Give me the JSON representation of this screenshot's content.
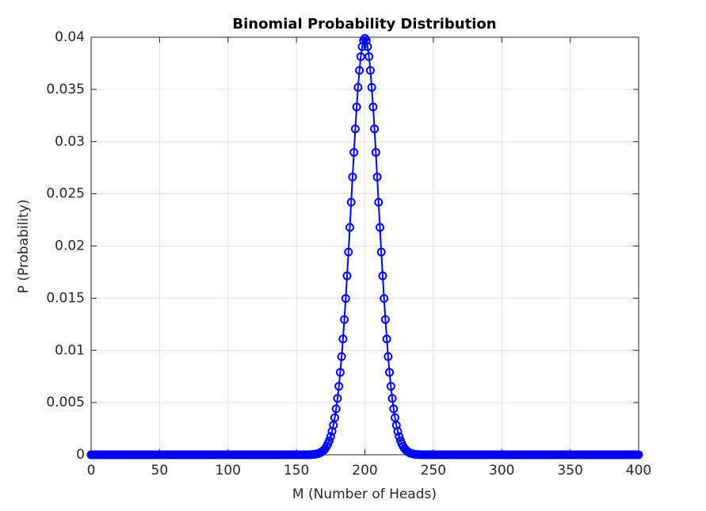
{
  "chart_data": {
    "type": "line",
    "title": "Binomial Probability Distribution",
    "x_label": "M (Number of Heads)",
    "y_label": "P (Probability)",
    "xlim": [
      0,
      400
    ],
    "xticks": [
      0,
      50,
      100,
      150,
      200,
      250,
      300,
      350,
      400
    ],
    "ylim": [
      0,
      0.04
    ],
    "yticks": [
      0,
      0.005,
      0.01,
      0.015,
      0.02,
      0.025,
      0.03,
      0.035,
      0.04
    ],
    "grid": true,
    "marker": "circle",
    "x": [
      0,
      1,
      2,
      3,
      4,
      5,
      6,
      7,
      8,
      9,
      10,
      11,
      12,
      13,
      14,
      15,
      16,
      17,
      18,
      19,
      20,
      21,
      22,
      23,
      24,
      25,
      26,
      27,
      28,
      29,
      30,
      31,
      32,
      33,
      34,
      35,
      36,
      37,
      38,
      39,
      40,
      41,
      42,
      43,
      44,
      45,
      46,
      47,
      48,
      49,
      50,
      51,
      52,
      53,
      54,
      55,
      56,
      57,
      58,
      59,
      60,
      61,
      62,
      63,
      64,
      65,
      66,
      67,
      68,
      69,
      70,
      71,
      72,
      73,
      74,
      75,
      76,
      77,
      78,
      79,
      80,
      81,
      82,
      83,
      84,
      85,
      86,
      87,
      88,
      89,
      90,
      91,
      92,
      93,
      94,
      95,
      96,
      97,
      98,
      99,
      100,
      101,
      102,
      103,
      104,
      105,
      106,
      107,
      108,
      109,
      110,
      111,
      112,
      113,
      114,
      115,
      116,
      117,
      118,
      119,
      120,
      121,
      122,
      123,
      124,
      125,
      126,
      127,
      128,
      129,
      130,
      131,
      132,
      133,
      134,
      135,
      136,
      137,
      138,
      139,
      140,
      141,
      142,
      143,
      144,
      145,
      146,
      147,
      148,
      149,
      150,
      151,
      152,
      153,
      154,
      155,
      156,
      157,
      158,
      159,
      160,
      161,
      162,
      163,
      164,
      165,
      166,
      167,
      168,
      169,
      170,
      171,
      172,
      173,
      174,
      175,
      176,
      177,
      178,
      179,
      180,
      181,
      182,
      183,
      184,
      185,
      186,
      187,
      188,
      189,
      190,
      191,
      192,
      193,
      194,
      195,
      196,
      197,
      198,
      199,
      200,
      201,
      202,
      203,
      204,
      205,
      206,
      207,
      208,
      209,
      210,
      211,
      212,
      213,
      214,
      215,
      216,
      217,
      218,
      219,
      220,
      221,
      222,
      223,
      224,
      225,
      226,
      227,
      228,
      229,
      230,
      231,
      232,
      233,
      234,
      235,
      236,
      237,
      238,
      239,
      240,
      241,
      242,
      243,
      244,
      245,
      246,
      247,
      248,
      249,
      250,
      251,
      252,
      253,
      254,
      255,
      256,
      257,
      258,
      259,
      260,
      261,
      262,
      263,
      264,
      265,
      266,
      267,
      268,
      269,
      270,
      271,
      272,
      273,
      274,
      275,
      276,
      277,
      278,
      279,
      280,
      281,
      282,
      283,
      284,
      285,
      286,
      287,
      288,
      289,
      290,
      291,
      292,
      293,
      294,
      295,
      296,
      297,
      298,
      299,
      300,
      301,
      302,
      303,
      304,
      305,
      306,
      307,
      308,
      309,
      310,
      311,
      312,
      313,
      314,
      315,
      316,
      317,
      318,
      319,
      320,
      321,
      322,
      323,
      324,
      325,
      326,
      327,
      328,
      329,
      330,
      331,
      332,
      333,
      334,
      335,
      336,
      337,
      338,
      339,
      340,
      341,
      342,
      343,
      344,
      345,
      346,
      347,
      348,
      349,
      350,
      351,
      352,
      353,
      354,
      355,
      356,
      357,
      358,
      359,
      360,
      361,
      362,
      363,
      364,
      365,
      366,
      367,
      368,
      369,
      370,
      371,
      372,
      373,
      374,
      375,
      376,
      377,
      378,
      379,
      380,
      381,
      382,
      383,
      384,
      385,
      386,
      387,
      388,
      389,
      390,
      391,
      392,
      393,
      394,
      395,
      396,
      397,
      398,
      399,
      400
    ],
    "series": [
      {
        "color": "#0000ff",
        "values": [
          0,
          0,
          0,
          0,
          0,
          0,
          0,
          0,
          0,
          0,
          0,
          0,
          0,
          0,
          0,
          0,
          0,
          0,
          0,
          0,
          0,
          0,
          0,
          0,
          0,
          0,
          0,
          0,
          0,
          0,
          0,
          0,
          0,
          0,
          0,
          0,
          0,
          0,
          0,
          0,
          0,
          0,
          0,
          0,
          0,
          0,
          0,
          0,
          0,
          0,
          0,
          0,
          0,
          0,
          0,
          0,
          0,
          0,
          0,
          0,
          0,
          0,
          0,
          0,
          0,
          0,
          0,
          0,
          0,
          0,
          0,
          0,
          0,
          0,
          0,
          0,
          0,
          0,
          0,
          0,
          0,
          0,
          0,
          0,
          0,
          0,
          0,
          0,
          0,
          0,
          0,
          0,
          0,
          0,
          0,
          0,
          0,
          0,
          0,
          0,
          0,
          0,
          0,
          0,
          0,
          0,
          0,
          0,
          0,
          0,
          0,
          0,
          0,
          0,
          0,
          0,
          0,
          0,
          0,
          0,
          0,
          0,
          0,
          0,
          0,
          0,
          0,
          0,
          0,
          0,
          0,
          0,
          0,
          0,
          0,
          0,
          0,
          0,
          0,
          0,
          0,
          0,
          0,
          0,
          0,
          0,
          0,
          0,
          0,
          0,
          0,
          0,
          0,
          0,
          0,
          0,
          0,
          0,
          0,
          1e-05,
          1e-05,
          2e-05,
          3e-05,
          4e-05,
          6e-05,
          9e-05,
          0.00012,
          0.00017,
          0.00024,
          0.00033,
          0.00044,
          0.0006,
          0.00079,
          0.00104,
          0.00136,
          0.00175,
          0.00224,
          0.00283,
          0.00355,
          0.0044,
          0.0054,
          0.00656,
          0.00789,
          0.0094,
          0.01109,
          0.01295,
          0.01497,
          0.01714,
          0.01942,
          0.02178,
          0.02419,
          0.02661,
          0.02897,
          0.03122,
          0.03332,
          0.0352,
          0.03682,
          0.03814,
          0.0391,
          0.03969,
          0.03989,
          0.03969,
          0.0391,
          0.03814,
          0.03682,
          0.0352,
          0.03332,
          0.03122,
          0.02897,
          0.02661,
          0.02419,
          0.02178,
          0.01942,
          0.01714,
          0.01497,
          0.01295,
          0.01109,
          0.0094,
          0.00789,
          0.00656,
          0.0054,
          0.0044,
          0.00355,
          0.00283,
          0.00224,
          0.00175,
          0.00136,
          0.00104,
          0.00079,
          0.0006,
          0.00044,
          0.00033,
          0.00024,
          0.00017,
          0.00012,
          9e-05,
          6e-05,
          4e-05,
          3e-05,
          2e-05,
          1e-05,
          1e-05,
          0,
          0,
          0,
          0,
          0,
          0,
          0,
          0,
          0,
          0,
          0,
          0,
          0,
          0,
          0,
          0,
          0,
          0,
          0,
          0,
          0,
          0,
          0,
          0,
          0,
          0,
          0,
          0,
          0,
          0,
          0,
          0,
          0,
          0,
          0,
          0,
          0,
          0,
          0,
          0,
          0,
          0,
          0,
          0,
          0,
          0,
          0,
          0,
          0,
          0,
          0,
          0,
          0,
          0,
          0,
          0,
          0,
          0,
          0,
          0,
          0,
          0,
          0,
          0,
          0,
          0,
          0,
          0,
          0,
          0,
          0,
          0,
          0,
          0,
          0,
          0,
          0,
          0,
          0,
          0,
          0,
          0,
          0,
          0,
          0,
          0,
          0,
          0,
          0,
          0,
          0,
          0,
          0,
          0,
          0,
          0,
          0,
          0,
          0,
          0,
          0,
          0,
          0,
          0,
          0,
          0,
          0,
          0,
          0,
          0,
          0,
          0,
          0,
          0,
          0,
          0,
          0,
          0,
          0,
          0,
          0,
          0,
          0,
          0,
          0,
          0,
          0,
          0,
          0,
          0,
          0,
          0,
          0,
          0,
          0,
          0,
          0,
          0,
          0,
          0,
          0,
          0,
          0,
          0,
          0,
          0,
          0,
          0,
          0,
          0,
          0,
          0,
          0,
          0,
          0,
          0,
          0,
          0,
          0
        ]
      }
    ]
  }
}
